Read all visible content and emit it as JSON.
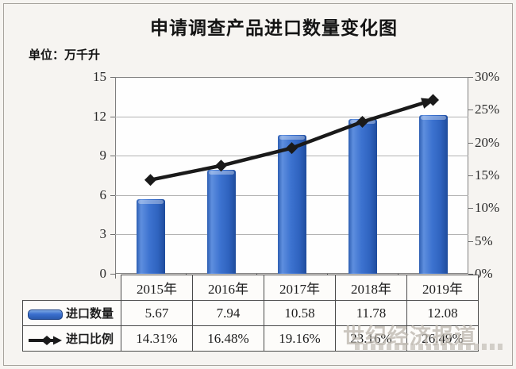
{
  "watermark": {
    "text": "世纪经济报道"
  },
  "colors": {
    "bar_main": "#3a6fce",
    "bar_light": "#5e8ede",
    "bar_dark": "#1f4c9c",
    "line": "#1a1a1a",
    "grid": "#b3b3b3",
    "plot_border": "#7f7f7f",
    "table_border": "#4a4a4a",
    "background": "#f6f4f1",
    "watermark": "#bab4ab"
  },
  "chart_data": {
    "type": "combo-bar-line",
    "title": "申请调查产品进口数量变化图",
    "unit_label": "单位：万千升",
    "categories": [
      "2015年",
      "2016年",
      "2017年",
      "2018年",
      "2019年"
    ],
    "series": [
      {
        "name": "进口数量",
        "type": "bar",
        "axis": "left",
        "color": "#3a6fce",
        "values": [
          5.67,
          7.94,
          10.58,
          11.78,
          12.08
        ],
        "formatted": [
          "5.67",
          "7.94",
          "10.58",
          "11.78",
          "12.08"
        ]
      },
      {
        "name": "进口比例",
        "type": "line",
        "axis": "right",
        "color": "#1a1a1a",
        "values": [
          14.31,
          16.48,
          19.16,
          23.16,
          26.49
        ],
        "formatted": [
          "14.31%",
          "16.48%",
          "19.16%",
          "23.16%",
          "26.49%"
        ]
      }
    ],
    "left_axis": {
      "min": 0,
      "max": 15,
      "ticks": [
        "15",
        "12",
        "9",
        "6",
        "3",
        "0"
      ]
    },
    "right_axis": {
      "min": 0,
      "max": 30,
      "ticks": [
        "30%",
        "25%",
        "20%",
        "15%",
        "10%",
        "5%",
        "0%"
      ]
    },
    "grid": true,
    "legend_position": "table-left"
  }
}
